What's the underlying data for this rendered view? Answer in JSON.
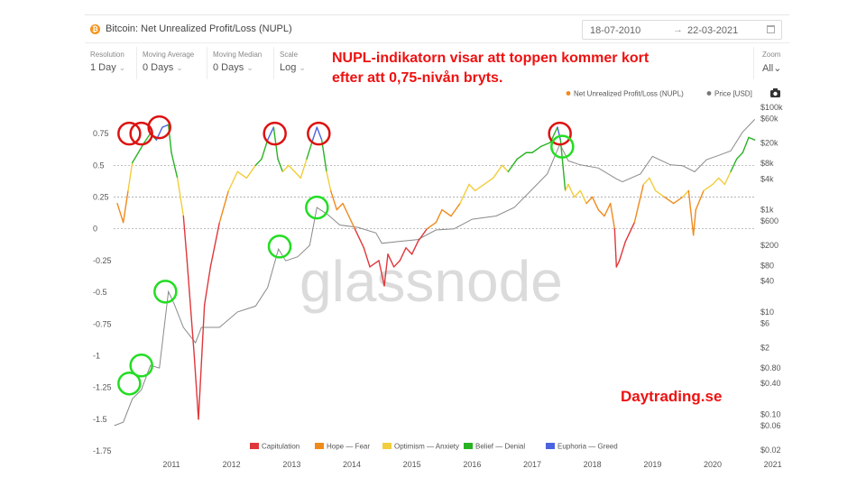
{
  "header": {
    "asset_symbol": "₿",
    "title": "Bitcoin: Net Unrealized Profit/Loss (NUPL)",
    "date_from": "18-07-2010",
    "date_arrow": "→",
    "date_to": "22-03-2021"
  },
  "controls": {
    "resolution": {
      "label": "Resolution",
      "value": "1 Day"
    },
    "moving_average": {
      "label": "Moving Average",
      "value": "0 Days"
    },
    "moving_median": {
      "label": "Moving Median",
      "value": "0 Days"
    },
    "scale": {
      "label": "Scale",
      "value": "Log"
    },
    "zoom": {
      "label": "Zoom",
      "value": "All"
    },
    "chevron": "⌄"
  },
  "annotation": {
    "line1": "NUPL-indikatorn visar att toppen kommer kort",
    "line2": "efter att 0,75-nivån bryts."
  },
  "watermark_text": "Daytrading.se",
  "brand": "glassnode",
  "colors": {
    "capitulation": "#e0373b",
    "hope_fear": "#f08a1c",
    "optimism_anxiety": "#f2cd3c",
    "belief_denial": "#28b323",
    "euphoria_greed": "#4b63e0",
    "price": "#8a8a8a",
    "annotation": "#ee1111",
    "circle_red": "#dd1111",
    "circle_green": "#22dd22"
  },
  "chart_data": {
    "type": "line",
    "title": "Bitcoin: Net Unrealized Profit/Loss (NUPL)",
    "x_axis": {
      "ticks": [
        "2011",
        "2012",
        "2013",
        "2014",
        "2015",
        "2016",
        "2017",
        "2018",
        "2019",
        "2020",
        "2021"
      ],
      "range": [
        2010.54,
        2021.22
      ]
    },
    "y_left": {
      "ticks": [
        "0.75",
        "0.5",
        "0.25",
        "0",
        "-0.25",
        "-0.5",
        "-0.75",
        "-1",
        "-1.25",
        "-1.5",
        "-1.75"
      ],
      "range": [
        -1.75,
        0.95
      ],
      "reference_lines": [
        0.5,
        0.25,
        0
      ]
    },
    "y_right": {
      "scale": "log",
      "ticks": [
        "$100k",
        "$60k",
        "$20k",
        "$8k",
        "$4k",
        "$1k",
        "$600",
        "$200",
        "$80",
        "$40",
        "$10",
        "$6",
        "$2",
        "$0.80",
        "$0.40",
        "$0.10",
        "$0.06",
        "$0.02"
      ]
    },
    "legend_top": [
      {
        "name": "Net Unrealized Profit/Loss (NUPL)",
        "color": "#f08a1c"
      },
      {
        "name": "Price [USD]",
        "color": "#777777"
      }
    ],
    "legend_bottom": [
      {
        "name": "Capitulation",
        "color": "#e0373b"
      },
      {
        "name": "Hope — Fear",
        "color": "#f08a1c"
      },
      {
        "name": "Optimism — Anxiety",
        "color": "#f2cd3c"
      },
      {
        "name": "Belief — Denial",
        "color": "#28b323"
      },
      {
        "name": "Euphoria — Greed",
        "color": "#4b63e0"
      }
    ],
    "series": [
      {
        "name": "Net Unrealized Profit/Loss (NUPL)",
        "x": [
          2010.6,
          2010.7,
          2010.78,
          2010.85,
          2010.95,
          2011.05,
          2011.15,
          2011.25,
          2011.35,
          2011.45,
          2011.5,
          2011.6,
          2011.7,
          2011.76,
          2011.8,
          2011.88,
          2011.95,
          2012.05,
          2012.15,
          2012.3,
          2012.45,
          2012.6,
          2012.75,
          2012.9,
          2013.0,
          2013.1,
          2013.2,
          2013.27,
          2013.35,
          2013.45,
          2013.55,
          2013.65,
          2013.75,
          2013.85,
          2013.92,
          2014.0,
          2014.08,
          2014.15,
          2014.25,
          2014.35,
          2014.45,
          2014.55,
          2014.7,
          2014.8,
          2014.95,
          2015.04,
          2015.1,
          2015.2,
          2015.3,
          2015.4,
          2015.5,
          2015.6,
          2015.75,
          2015.9,
          2016.0,
          2016.15,
          2016.3,
          2016.45,
          2016.55,
          2016.7,
          2016.85,
          2017.0,
          2017.1,
          2017.25,
          2017.4,
          2017.5,
          2017.65,
          2017.8,
          2017.92,
          2017.97,
          2018.05,
          2018.1,
          2018.2,
          2018.3,
          2018.4,
          2018.5,
          2018.6,
          2018.7,
          2018.8,
          2018.87,
          2018.9,
          2018.95,
          2019.05,
          2019.2,
          2019.35,
          2019.45,
          2019.55,
          2019.7,
          2019.85,
          2020.0,
          2020.1,
          2020.18,
          2020.22,
          2020.35,
          2020.5,
          2020.6,
          2020.7,
          2020.8,
          2020.9,
          2021.0,
          2021.1,
          2021.2
        ],
        "y": [
          0.2,
          0.05,
          0.3,
          0.52,
          0.6,
          0.68,
          0.75,
          0.7,
          0.8,
          0.82,
          0.6,
          0.4,
          0.1,
          -0.25,
          -0.5,
          -1.0,
          -1.5,
          -0.6,
          -0.3,
          0.05,
          0.3,
          0.45,
          0.4,
          0.5,
          0.55,
          0.7,
          0.8,
          0.55,
          0.45,
          0.5,
          0.45,
          0.4,
          0.55,
          0.7,
          0.8,
          0.7,
          0.45,
          0.3,
          0.15,
          0.2,
          0.1,
          0.0,
          -0.15,
          -0.3,
          -0.25,
          -0.45,
          -0.2,
          -0.3,
          -0.25,
          -0.15,
          -0.2,
          -0.1,
          0.0,
          0.05,
          0.15,
          0.1,
          0.2,
          0.35,
          0.3,
          0.35,
          0.4,
          0.5,
          0.45,
          0.55,
          0.6,
          0.6,
          0.65,
          0.68,
          0.8,
          0.7,
          0.3,
          0.35,
          0.25,
          0.3,
          0.2,
          0.25,
          0.15,
          0.1,
          0.2,
          0.0,
          -0.3,
          -0.25,
          -0.1,
          0.05,
          0.35,
          0.4,
          0.3,
          0.25,
          0.2,
          0.25,
          0.3,
          -0.05,
          0.15,
          0.3,
          0.35,
          0.4,
          0.35,
          0.45,
          0.55,
          0.6,
          0.72,
          0.7
        ]
      },
      {
        "name": "Price [USD]",
        "x": [
          2010.55,
          2010.7,
          2010.85,
          2011.0,
          2011.15,
          2011.3,
          2011.45,
          2011.55,
          2011.7,
          2011.9,
          2012.0,
          2012.3,
          2012.6,
          2012.9,
          2013.1,
          2013.28,
          2013.4,
          2013.6,
          2013.8,
          2013.92,
          2014.1,
          2014.3,
          2014.6,
          2014.9,
          2015.0,
          2015.3,
          2015.6,
          2015.9,
          2016.2,
          2016.5,
          2016.9,
          2017.2,
          2017.5,
          2017.75,
          2017.96,
          2018.1,
          2018.3,
          2018.6,
          2018.9,
          2019.0,
          2019.3,
          2019.5,
          2019.8,
          2020.0,
          2020.2,
          2020.4,
          2020.6,
          2020.8,
          2021.0,
          2021.2
        ],
        "y": [
          0.06,
          0.07,
          0.2,
          0.3,
          0.9,
          0.8,
          25,
          14,
          5,
          2.5,
          5,
          5,
          10,
          13,
          30,
          170,
          100,
          120,
          200,
          1100,
          800,
          500,
          450,
          350,
          220,
          240,
          260,
          400,
          420,
          650,
          750,
          1100,
          2500,
          5000,
          19000,
          9000,
          7500,
          6500,
          4000,
          3500,
          5000,
          11000,
          7500,
          7200,
          5500,
          9500,
          11500,
          14000,
          33000,
          58000
        ]
      }
    ],
    "annotations": {
      "red_circles_at_nupl_peaks": [
        [
          2010.8,
          0.75
        ],
        [
          2011.0,
          0.75
        ],
        [
          2011.3,
          0.8
        ],
        [
          2013.22,
          0.75
        ],
        [
          2013.95,
          0.75
        ],
        [
          2017.96,
          0.75
        ]
      ],
      "green_circles_at_price_peaks": [
        [
          2010.8,
          0.4
        ],
        [
          2011.0,
          0.9
        ],
        [
          2011.4,
          25
        ],
        [
          2013.3,
          190
        ],
        [
          2013.92,
          1100
        ],
        [
          2018.0,
          17000
        ]
      ]
    }
  }
}
